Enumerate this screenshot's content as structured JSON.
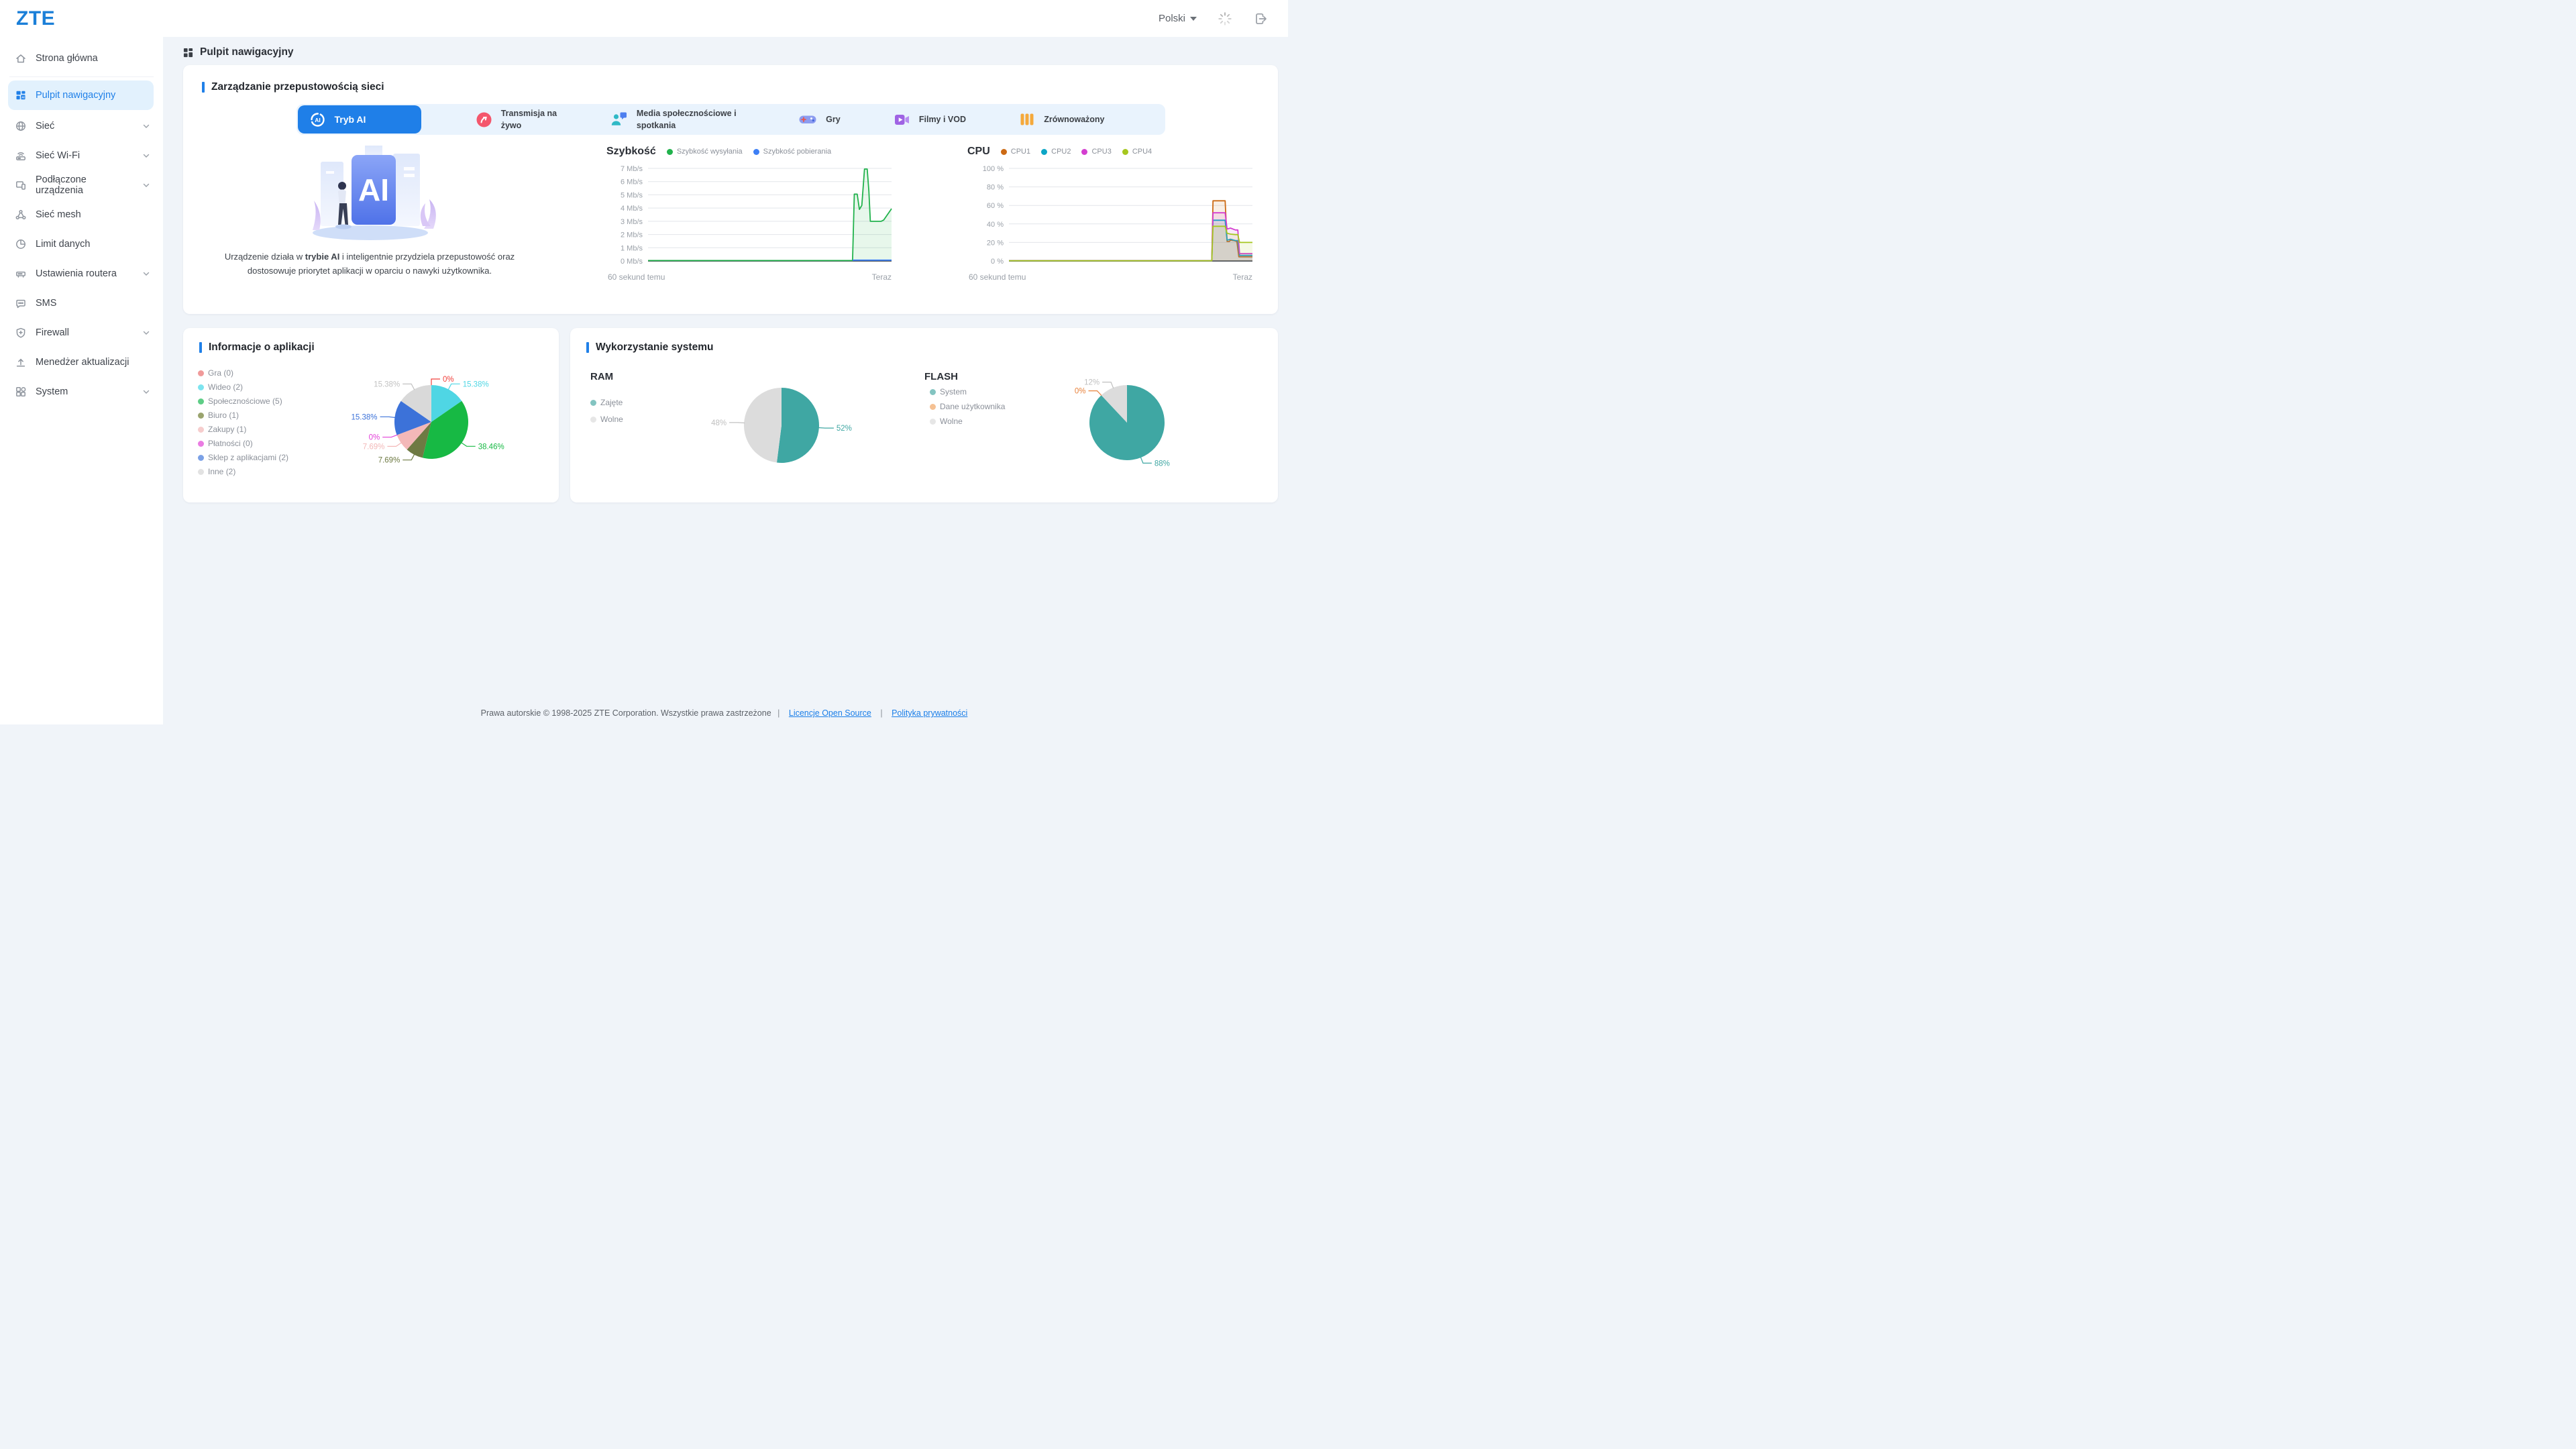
{
  "palette": {
    "accent": "#2080e8",
    "logo_blue": "#1b7fd8",
    "page_bg": "#f0f4f9",
    "tabbar_bg": "#e9f3fd",
    "sidebar_active_bg": "#e2f1fd"
  },
  "topbar": {
    "logo": "ZTE",
    "language": "Polski"
  },
  "page": {
    "title": "Pulpit nawigacyjny"
  },
  "sidebar": {
    "items": [
      {
        "label": "Strona główna",
        "icon": "home"
      },
      {
        "label": "Pulpit nawigacyjny",
        "icon": "dashboard",
        "active": true
      },
      {
        "label": "Sieć",
        "icon": "globe",
        "chevron": true
      },
      {
        "label": "Sieć Wi-Fi",
        "icon": "wifi-router",
        "chevron": true
      },
      {
        "label": "Podłączone urządzenia",
        "icon": "devices",
        "chevron": true
      },
      {
        "label": "Sieć mesh",
        "icon": "mesh"
      },
      {
        "label": "Limit danych",
        "icon": "data-limit"
      },
      {
        "label": "Ustawienia routera",
        "icon": "router-settings",
        "chevron": true
      },
      {
        "label": "SMS",
        "icon": "sms"
      },
      {
        "label": "Firewall",
        "icon": "firewall",
        "chevron": true
      },
      {
        "label": "Menedżer aktualizacji",
        "icon": "update"
      },
      {
        "label": "System",
        "icon": "system",
        "chevron": true
      }
    ]
  },
  "bandwidth": {
    "title": "Zarządzanie przepustowością sieci",
    "tabs": [
      {
        "label": "Tryb AI",
        "icon": "ai-mode",
        "active": true
      },
      {
        "label": "Transmisja na żywo",
        "icon": "live-stream"
      },
      {
        "label": "Media społecznościowe i spotkania",
        "icon": "social-media"
      },
      {
        "label": "Gry",
        "icon": "games"
      },
      {
        "label": "Filmy i VOD",
        "icon": "movies-vod"
      },
      {
        "label": "Zrównoważony",
        "icon": "balanced"
      }
    ],
    "caption": {
      "prefix": "Urządzenie działa w ",
      "bold": "trybie AI",
      "suffix": " i inteligentnie przydziela przepustowość oraz dostosowuje priorytet aplikacji w oparciu o nawyki użytkownika."
    }
  },
  "apps": {
    "title": "Informacje o aplikacji"
  },
  "usage": {
    "title": "Wykorzystanie systemu",
    "ram_title": "RAM",
    "flash_title": "FLASH"
  },
  "footer": {
    "copyright": "Prawa autorskie © 1998-2025 ZTE Corporation. Wszystkie prawa zastrzeżone",
    "sep": "|",
    "links": [
      "Licencje Open Source",
      "Polityka prywatności"
    ]
  },
  "chart_data": [
    {
      "id": "speed",
      "type": "line",
      "title": "Szybkość",
      "ymax": 7,
      "ylim": [
        0,
        7
      ],
      "grid": true,
      "legend_position": "top",
      "yticks": [
        {
          "v": 7,
          "label": "7 Mb/s"
        },
        {
          "v": 6,
          "label": "6 Mb/s"
        },
        {
          "v": 5,
          "label": "5 Mb/s"
        },
        {
          "v": 4,
          "label": "4 Mb/s"
        },
        {
          "v": 3,
          "label": "3 Mb/s"
        },
        {
          "v": 2,
          "label": "2 Mb/s"
        },
        {
          "v": 1,
          "label": "1 Mb/s"
        },
        {
          "v": 0,
          "label": "0 Mb/s"
        }
      ],
      "x_left": "60 sekund temu",
      "x_right": "Teraz",
      "series": [
        {
          "name": "Szybkość wysyłania",
          "color": "#21b24c",
          "fill": true,
          "points": [
            [
              0,
              0.03
            ],
            [
              0.84,
              0.03
            ],
            [
              0.847,
              5.05
            ],
            [
              0.859,
              5.05
            ],
            [
              0.868,
              3.9
            ],
            [
              0.878,
              4.2
            ],
            [
              0.889,
              6.95
            ],
            [
              0.9,
              6.95
            ],
            [
              0.907,
              5.3
            ],
            [
              0.913,
              3
            ],
            [
              0.957,
              3
            ],
            [
              0.968,
              3.1
            ],
            [
              1,
              3.95
            ]
          ]
        },
        {
          "name": "Szybkość pobierania",
          "color": "#3d7ff5",
          "fill": false,
          "points": [
            [
              0.84,
              0.06
            ],
            [
              1,
              0.06
            ]
          ]
        }
      ]
    },
    {
      "id": "cpu",
      "type": "line",
      "title": "CPU",
      "ymax": 100,
      "ylim": [
        0,
        100
      ],
      "grid": true,
      "legend_position": "top",
      "yticks": [
        {
          "v": 100,
          "label": "100 %"
        },
        {
          "v": 80,
          "label": "80 %"
        },
        {
          "v": 60,
          "label": "60 %"
        },
        {
          "v": 40,
          "label": "40 %"
        },
        {
          "v": 20,
          "label": "20 %"
        },
        {
          "v": 0,
          "label": "0 %"
        }
      ],
      "x_left": "60 sekund temu",
      "x_right": "Teraz",
      "series": [
        {
          "name": "CPU1",
          "color": "#cc6a14",
          "fill": true,
          "points": [
            [
              0,
              0.3
            ],
            [
              0.833,
              0.3
            ],
            [
              0.838,
              65
            ],
            [
              0.888,
              65
            ],
            [
              0.896,
              21
            ],
            [
              0.905,
              21
            ],
            [
              0.91,
              22.5
            ],
            [
              0.925,
              22
            ],
            [
              0.936,
              21
            ],
            [
              0.944,
              4.5
            ],
            [
              1,
              4.5
            ]
          ]
        },
        {
          "name": "CPU2",
          "color": "#0ca6c6",
          "fill": true,
          "points": [
            [
              0,
              0.3
            ],
            [
              0.833,
              0.3
            ],
            [
              0.838,
              44
            ],
            [
              0.888,
              44
            ],
            [
              0.896,
              22.5
            ],
            [
              0.91,
              23.5
            ],
            [
              0.93,
              22
            ],
            [
              0.94,
              22
            ],
            [
              0.947,
              6
            ],
            [
              1,
              6
            ]
          ]
        },
        {
          "name": "CPU3",
          "color": "#d43ed0",
          "fill": true,
          "points": [
            [
              0,
              0.3
            ],
            [
              0.833,
              0.3
            ],
            [
              0.838,
              52
            ],
            [
              0.888,
              52
            ],
            [
              0.896,
              34.5
            ],
            [
              0.91,
              35.5
            ],
            [
              0.93,
              33.5
            ],
            [
              0.94,
              33.5
            ],
            [
              0.947,
              8
            ],
            [
              1,
              8
            ]
          ]
        },
        {
          "name": "CPU4",
          "color": "#a6c71f",
          "fill": true,
          "points": [
            [
              0,
              0.3
            ],
            [
              0.833,
              0.3
            ],
            [
              0.838,
              37.5
            ],
            [
              0.888,
              37.5
            ],
            [
              0.896,
              30
            ],
            [
              0.91,
              29
            ],
            [
              0.93,
              28.5
            ],
            [
              0.94,
              28.5
            ],
            [
              0.947,
              20
            ],
            [
              1,
              20
            ]
          ]
        }
      ]
    },
    {
      "id": "apps",
      "type": "pie",
      "title": "Informacje o aplikacji",
      "legend_position": "left",
      "slices": [
        {
          "label": "Gra (0)",
          "pct": 0,
          "color": "#f1403c",
          "dot": "#f09a9a",
          "pct_label": "0%"
        },
        {
          "label": "Wideo (2)",
          "pct": 15.38,
          "color": "#4fd6e4",
          "dot": "#7de4ef",
          "pct_label": "15.38%"
        },
        {
          "label": "Społecznościowe (5)",
          "pct": 38.46,
          "color": "#17b944",
          "dot": "#5ecd86",
          "pct_label": "38.46%"
        },
        {
          "label": "Biuro (1)",
          "pct": 7.69,
          "color": "#6e7a43",
          "dot": "#9aa46e",
          "pct_label": "7.69%"
        },
        {
          "label": "Zakupy (1)",
          "pct": 7.69,
          "color": "#f3b8b8",
          "dot": "#f6cdcd",
          "pct_label": "7.69%"
        },
        {
          "label": "Płatności (0)",
          "pct": 0,
          "color": "#e23ed8",
          "dot": "#ea7ce2",
          "pct_label": "0%"
        },
        {
          "label": "Sklep z aplikacjami (2)",
          "pct": 15.38,
          "color": "#3c72d9",
          "dot": "#7ba1e6",
          "pct_label": "15.38%"
        },
        {
          "label": "Inne (2)",
          "pct": 15.38,
          "color": "#d9d9d9",
          "dot": "#e2e2e2",
          "pct_label": "15.38%",
          "label_color": "#c2c2c2"
        }
      ]
    },
    {
      "id": "ram",
      "type": "pie",
      "title": "RAM",
      "legend_position": "left",
      "slices": [
        {
          "label": "Zajęte",
          "pct": 52,
          "color": "#3fa7a3",
          "dot": "#83c4c1",
          "pct_label": "52%"
        },
        {
          "label": "Wolne",
          "pct": 48,
          "color": "#dcdcdc",
          "dot": "#e6e6e6",
          "pct_label": "48%",
          "label_color": "#c0c0c0"
        }
      ]
    },
    {
      "id": "flash",
      "type": "pie",
      "title": "FLASH",
      "legend_position": "left",
      "slices": [
        {
          "label": "System",
          "pct": 88,
          "color": "#3fa7a3",
          "dot": "#83c4c1",
          "pct_label": "88%"
        },
        {
          "label": "Dane użytkownika",
          "pct": 0,
          "color": "#e8823b",
          "dot": "#f5c193",
          "pct_label": "0%"
        },
        {
          "label": "Wolne",
          "pct": 12,
          "color": "#dcdcdc",
          "dot": "#e6e6e6",
          "pct_label": "12%",
          "label_color": "#c0c0c0"
        }
      ]
    }
  ]
}
